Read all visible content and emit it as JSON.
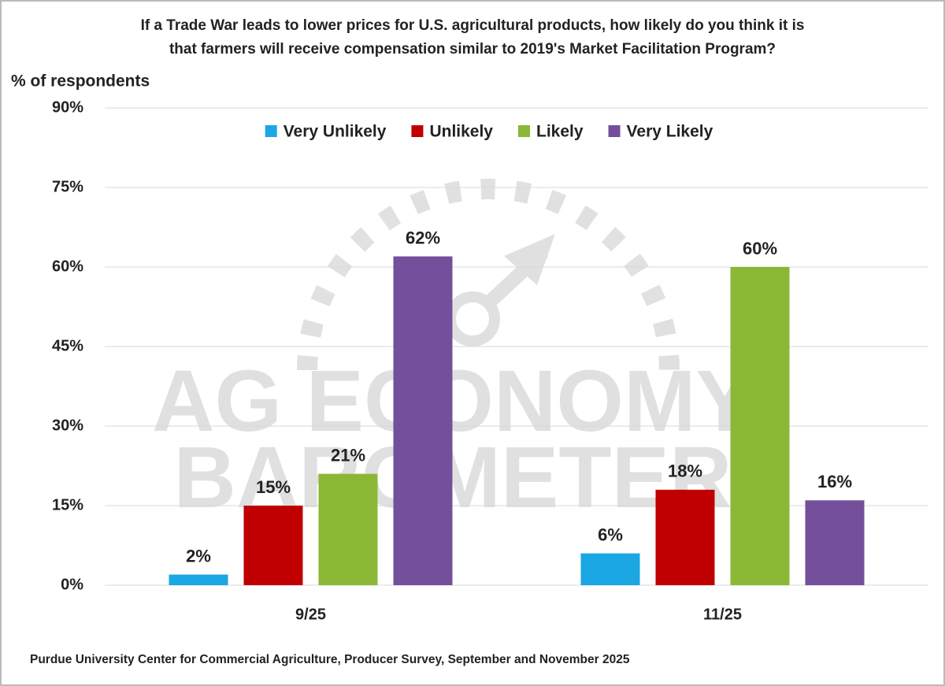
{
  "chart_data": {
    "type": "bar",
    "title": [
      "If a Trade War leads to lower prices for U.S. agricultural products, how likely do you think it is",
      "that farmers will receive compensation similar to 2019's Market Facilitation Program?"
    ],
    "y_axis_label": "% of respondents",
    "source": "Purdue University Center for Commercial Agriculture, Producer Survey, September and November 2025",
    "watermark": [
      "AG ECONOMY",
      "BAROMETER"
    ],
    "categories": [
      "9/25",
      "11/25"
    ],
    "series": [
      {
        "name": "Very Unlikely",
        "color": "#1ba6e4",
        "values": [
          2,
          6
        ],
        "value_labels": [
          "2%",
          "6%"
        ]
      },
      {
        "name": "Unlikely",
        "color": "#c00000",
        "values": [
          15,
          18
        ],
        "value_labels": [
          "15%",
          "18%"
        ]
      },
      {
        "name": "Likely",
        "color": "#8ab835",
        "values": [
          21,
          60
        ],
        "value_labels": [
          "21%",
          "60%"
        ]
      },
      {
        "name": "Very Likely",
        "color": "#744f9b",
        "values": [
          62,
          16
        ],
        "value_labels": [
          "62%",
          "16%"
        ]
      }
    ],
    "ylim": [
      0,
      90
    ],
    "yticks": [
      {
        "value": 0,
        "label": "0%"
      },
      {
        "value": 15,
        "label": "15%"
      },
      {
        "value": 30,
        "label": "30%"
      },
      {
        "value": 45,
        "label": "45%"
      },
      {
        "value": 60,
        "label": "60%"
      },
      {
        "value": 75,
        "label": "75%"
      },
      {
        "value": 90,
        "label": "90%"
      }
    ],
    "grid": true,
    "legend": "top"
  }
}
